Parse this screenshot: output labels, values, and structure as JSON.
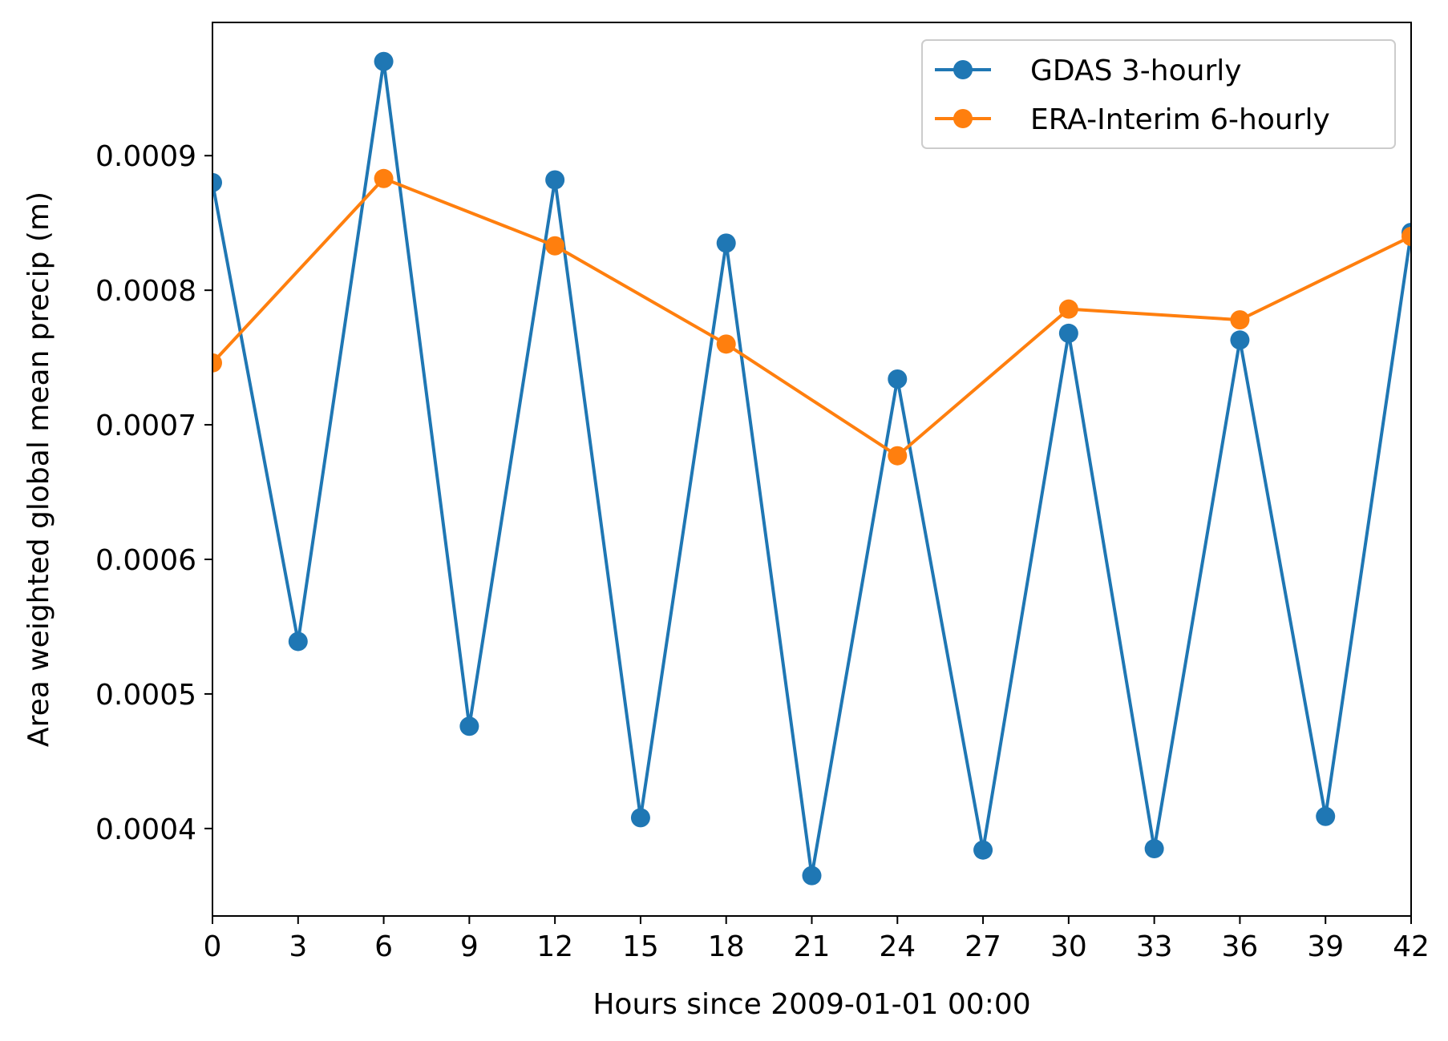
{
  "chart_data": {
    "type": "line",
    "title": "",
    "xlabel": "Hours since 2009-01-01 00:00",
    "ylabel": "Area weighted global mean precip (m)",
    "xlim": [
      0,
      42
    ],
    "ylim": [
      0.000335,
      0.000999
    ],
    "xticks": [
      0,
      3,
      6,
      9,
      12,
      15,
      18,
      21,
      24,
      27,
      30,
      33,
      36,
      39,
      42
    ],
    "xtick_labels": [
      "0",
      "3",
      "6",
      "9",
      "12",
      "15",
      "18",
      "21",
      "24",
      "27",
      "30",
      "33",
      "36",
      "39",
      "42"
    ],
    "yticks": [
      0.0004,
      0.0005,
      0.0006,
      0.0007,
      0.0008,
      0.0009
    ],
    "ytick_labels": [
      "0.0004",
      "0.0005",
      "0.0006",
      "0.0007",
      "0.0008",
      "0.0009"
    ],
    "grid": false,
    "legend_position": "top-right",
    "series": [
      {
        "name": "GDAS 3-hourly",
        "color": "#1f77b4",
        "marker": "circle",
        "x": [
          0,
          3,
          6,
          9,
          12,
          15,
          18,
          21,
          24,
          27,
          30,
          33,
          36,
          39,
          42
        ],
        "y": [
          0.00088,
          0.000539,
          0.00097,
          0.000476,
          0.000882,
          0.000408,
          0.000835,
          0.000365,
          0.000734,
          0.000384,
          0.000768,
          0.000385,
          0.000763,
          0.000409,
          0.000843
        ]
      },
      {
        "name": "ERA-Interim 6-hourly",
        "color": "#ff7f0e",
        "marker": "circle",
        "x": [
          0,
          6,
          12,
          18,
          24,
          30,
          36,
          42
        ],
        "y": [
          0.000746,
          0.000883,
          0.000833,
          0.00076,
          0.000677,
          0.000786,
          0.000778,
          0.00084
        ]
      }
    ]
  }
}
